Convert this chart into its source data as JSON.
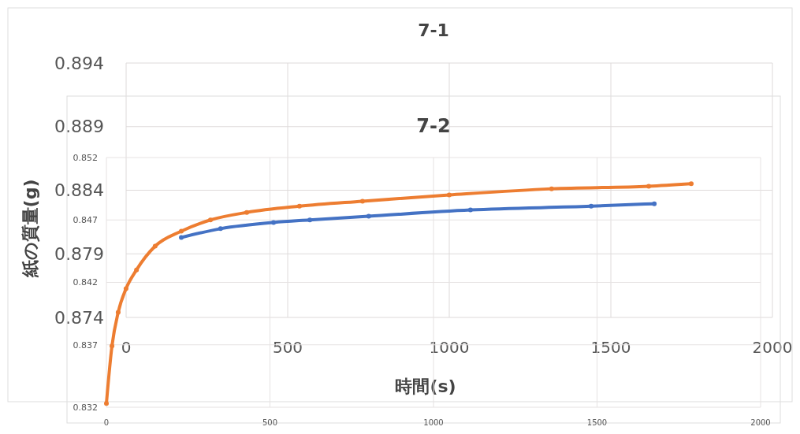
{
  "chart_data": [
    {
      "type": "line",
      "title": "7-1",
      "xlabel": "時間(s)",
      "ylabel": "紙の質量(g)",
      "xlim": [
        0,
        2000
      ],
      "ylim": [
        0.874,
        0.894
      ],
      "xticks": [
        0,
        500,
        1000,
        1500,
        2000
      ],
      "yticks": [
        0.874,
        0.879,
        0.884,
        0.889,
        0.894
      ],
      "grid": true
    },
    {
      "type": "line",
      "title": "7-2",
      "xlim": [
        0,
        2000
      ],
      "ylim": [
        0.832,
        0.852
      ],
      "xticks": [
        0,
        500,
        1000,
        1500,
        2000
      ],
      "yticks": [
        0.832,
        0.837,
        0.842,
        0.847,
        0.852
      ],
      "grid": true,
      "marker": "circle",
      "series": [
        {
          "color": "#4472c4",
          "x": [
            229,
            349,
            511,
            622,
            802,
            1113,
            1482,
            1675
          ],
          "values": [
            0.8456,
            0.8463,
            0.8468,
            0.847,
            0.8473,
            0.8478,
            0.8481,
            0.8483
          ]
        },
        {
          "color": "#ed7d31",
          "x": [
            0,
            17,
            36,
            60,
            92,
            149,
            229,
            318,
            429,
            590,
            783,
            1048,
            1361,
            1658,
            1788
          ],
          "values": [
            0.8323,
            0.8369,
            0.8396,
            0.8415,
            0.843,
            0.8449,
            0.8461,
            0.847,
            0.8476,
            0.8481,
            0.8485,
            0.849,
            0.8495,
            0.8497,
            0.8499
          ]
        }
      ]
    }
  ]
}
